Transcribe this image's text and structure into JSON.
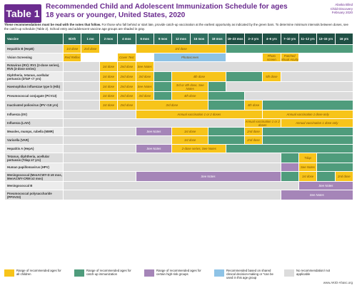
{
  "header": {
    "badge": "Table 1",
    "title": "Recommended Child and Adolescent Immunization Schedule for ages 18 years or younger, United States, 2020",
    "meta": [
      "Alaska Blind",
      "Child Discovery",
      "February 2020"
    ]
  },
  "intro": {
    "bold": "These recommendations must be read with the notes that follow.",
    "text": " For those who fall behind or start late, provide catch-up vaccination at the earliest opportunity as indicated by the green bars. To determine minimum intervals between doses, see the catch-up schedule (Table 2). School entry and adolescent vaccine age groups are shaded in gray."
  },
  "columns": [
    "Vaccine",
    "Birth",
    "1 mo",
    "2 mos",
    "4 mos",
    "6 mos",
    "9 mos",
    "12 mos",
    "15 mos",
    "18 mos",
    "19–23 mos",
    "2–3 yrs",
    "4–6 yrs",
    "7–10 yrs",
    "11–12 yrs",
    "13–15 yrs",
    "16 yrs",
    "17–18 yrs"
  ],
  "rows": [
    {
      "name": "Hepatitis B (HepB)",
      "cells": [
        {
          "span": 1,
          "c": "y",
          "t": "1st dose"
        },
        {
          "span": 1,
          "c": "y",
          "t": "2nd dose"
        },
        {
          "span": 1,
          "c": "w",
          "t": ""
        },
        {
          "span": 1,
          "c": "w",
          "t": ""
        },
        {
          "span": 5,
          "c": "y",
          "t": "3rd dose"
        },
        {
          "span": 8,
          "c": "g",
          "t": ""
        }
      ]
    },
    {
      "name": "Vision Screening",
      "cells": [
        {
          "span": 1,
          "c": "y",
          "t": "Red Reflex"
        },
        {
          "span": 2,
          "c": "w",
          "t": ""
        },
        {
          "span": 1,
          "c": "y",
          "t": "Cover Test"
        },
        {
          "span": 1,
          "c": "w",
          "t": ""
        },
        {
          "span": 4,
          "c": "b",
          "t": "Photoscreen"
        },
        {
          "span": 2,
          "c": "w",
          "t": ""
        },
        {
          "span": 1,
          "c": "y",
          "t": "Photo screen"
        },
        {
          "span": 1,
          "c": "y",
          "t": "Patched Visual Acuity"
        },
        {
          "span": 4,
          "c": "w",
          "t": ""
        }
      ]
    },
    {
      "name": "Rotavirus (RV): RV1 (2-dose series), RV5 (3-dose series)",
      "cells": [
        {
          "span": 2,
          "c": "x",
          "t": ""
        },
        {
          "span": 1,
          "c": "y",
          "t": "1st dose"
        },
        {
          "span": 1,
          "c": "y",
          "t": "2nd dose"
        },
        {
          "span": 1,
          "c": "y",
          "t": "See Notes"
        },
        {
          "span": 11,
          "c": "x",
          "t": ""
        }
      ]
    },
    {
      "name": "Diphtheria, tetanus, acellular pertussis (DTaP <7 yrs)",
      "cells": [
        {
          "span": 2,
          "c": "x",
          "t": ""
        },
        {
          "span": 1,
          "c": "y",
          "t": "1st dose"
        },
        {
          "span": 1,
          "c": "y",
          "t": "2nd dose"
        },
        {
          "span": 1,
          "c": "y",
          "t": "3rd dose"
        },
        {
          "span": 1,
          "c": "g",
          "t": ""
        },
        {
          "span": 3,
          "c": "y",
          "t": "4th dose"
        },
        {
          "span": 2,
          "c": "g",
          "t": ""
        },
        {
          "span": 1,
          "c": "y",
          "t": "5th dose"
        },
        {
          "span": 4,
          "c": "x",
          "t": ""
        }
      ]
    },
    {
      "name": "Haemophilus influenzae type b (Hib)",
      "cells": [
        {
          "span": 2,
          "c": "x",
          "t": ""
        },
        {
          "span": 1,
          "c": "y",
          "t": "1st dose"
        },
        {
          "span": 1,
          "c": "y",
          "t": "2nd dose"
        },
        {
          "span": 1,
          "c": "y",
          "t": "See Notes"
        },
        {
          "span": 1,
          "c": "g",
          "t": ""
        },
        {
          "span": 2,
          "c": "y",
          "t": "3rd or 4th dose, See Notes"
        },
        {
          "span": 1,
          "c": "g",
          "t": ""
        },
        {
          "span": 7,
          "c": "x",
          "t": ""
        }
      ]
    },
    {
      "name": "Pneumococcal conjugate (PCV13)",
      "cells": [
        {
          "span": 2,
          "c": "x",
          "t": ""
        },
        {
          "span": 1,
          "c": "y",
          "t": "1st dose"
        },
        {
          "span": 1,
          "c": "y",
          "t": "2nd dose"
        },
        {
          "span": 1,
          "c": "y",
          "t": "3rd dose"
        },
        {
          "span": 1,
          "c": "g",
          "t": ""
        },
        {
          "span": 2,
          "c": "y",
          "t": "4th dose"
        },
        {
          "span": 2,
          "c": "g",
          "t": ""
        },
        {
          "span": 6,
          "c": "x",
          "t": ""
        }
      ]
    },
    {
      "name": "Inactivated poliovirus (IPV <18 yrs)",
      "cells": [
        {
          "span": 2,
          "c": "x",
          "t": ""
        },
        {
          "span": 1,
          "c": "y",
          "t": "1st dose"
        },
        {
          "span": 1,
          "c": "y",
          "t": "2nd dose"
        },
        {
          "span": 4,
          "c": "y",
          "t": "3rd dose"
        },
        {
          "span": 2,
          "c": "g",
          "t": ""
        },
        {
          "span": 1,
          "c": "y",
          "t": "4th dose"
        },
        {
          "span": 5,
          "c": "g",
          "t": ""
        }
      ]
    },
    {
      "name": "Influenza (IIV)",
      "cells": [
        {
          "span": 4,
          "c": "x",
          "t": ""
        },
        {
          "span": 7,
          "c": "y",
          "t": "Annual vaccination 1 or 2 doses"
        },
        {
          "span": 5,
          "c": "y",
          "t": "Annual vaccination 1 dose only"
        }
      ]
    },
    {
      "name": "Influenza (LAIV)",
      "cells": [
        {
          "span": 10,
          "c": "x",
          "t": ""
        },
        {
          "span": 2,
          "c": "y",
          "t": "Annual vaccination 1 or 2 doses"
        },
        {
          "span": 4,
          "c": "y",
          "t": "Annual vaccination 1 dose only"
        }
      ]
    },
    {
      "name": "Measles, mumps, rubella (MMR)",
      "cells": [
        {
          "span": 4,
          "c": "x",
          "t": ""
        },
        {
          "span": 2,
          "c": "p",
          "t": "See Notes"
        },
        {
          "span": 2,
          "c": "y",
          "t": "1st dose"
        },
        {
          "span": 2,
          "c": "g",
          "t": ""
        },
        {
          "span": 1,
          "c": "y",
          "t": "2nd dose"
        },
        {
          "span": 5,
          "c": "g",
          "t": ""
        }
      ]
    },
    {
      "name": "Varicella (VAR)",
      "cells": [
        {
          "span": 6,
          "c": "x",
          "t": ""
        },
        {
          "span": 2,
          "c": "y",
          "t": "1st dose"
        },
        {
          "span": 2,
          "c": "g",
          "t": ""
        },
        {
          "span": 1,
          "c": "y",
          "t": "2nd dose"
        },
        {
          "span": 5,
          "c": "g",
          "t": ""
        }
      ]
    },
    {
      "name": "Hepatitis A (HepA)",
      "cells": [
        {
          "span": 4,
          "c": "x",
          "t": ""
        },
        {
          "span": 2,
          "c": "p",
          "t": "See Notes"
        },
        {
          "span": 3,
          "c": "y",
          "t": "2-dose series, See Notes"
        },
        {
          "span": 7,
          "c": "g",
          "t": ""
        }
      ]
    },
    {
      "name": "Tetanus, diphtheria, acellular pertussis (Tdap ≥7 yrs)",
      "cells": [
        {
          "span": 12,
          "c": "x",
          "t": ""
        },
        {
          "span": 1,
          "c": "g",
          "t": ""
        },
        {
          "span": 1,
          "c": "y",
          "t": "Tdap"
        },
        {
          "span": 2,
          "c": "g",
          "t": ""
        }
      ]
    },
    {
      "name": "Human papillomavirus (HPV)",
      "cells": [
        {
          "span": 12,
          "c": "x",
          "t": ""
        },
        {
          "span": 1,
          "c": "p",
          "t": ""
        },
        {
          "span": 1,
          "c": "y",
          "t": "See Notes"
        },
        {
          "span": 2,
          "c": "g",
          "t": ""
        }
      ]
    },
    {
      "name": "Meningococcal (MenACWY-D ≥9 mos, MenACWY-CRM ≥2 mos)",
      "cells": [
        {
          "span": 4,
          "c": "x",
          "t": ""
        },
        {
          "span": 8,
          "c": "p",
          "t": "See Notes"
        },
        {
          "span": 1,
          "c": "g",
          "t": ""
        },
        {
          "span": 1,
          "c": "y",
          "t": "1st dose"
        },
        {
          "span": 1,
          "c": "g",
          "t": ""
        },
        {
          "span": 1,
          "c": "y",
          "t": "2nd dose"
        }
      ]
    },
    {
      "name": "Meningococcal B",
      "cells": [
        {
          "span": 13,
          "c": "x",
          "t": ""
        },
        {
          "span": 3,
          "c": "p",
          "t": "See Notes"
        }
      ]
    },
    {
      "name": "Pneumococcal polysaccharide (PPSV23)",
      "cells": [
        {
          "span": 12,
          "c": "x",
          "t": ""
        },
        {
          "span": 4,
          "c": "p",
          "t": "See Notes"
        }
      ]
    }
  ],
  "or_label": "OR",
  "legend": [
    {
      "color": "#f7c41a",
      "text": "Range of recommended ages for all children"
    },
    {
      "color": "#4f9c7c",
      "text": "Range of recommended ages for catch-up immunization"
    },
    {
      "color": "#a585b8",
      "text": "Range of recommended ages for certain high-risk groups"
    },
    {
      "color": "#8ec3e6",
      "text": "Recommended based on shared clinical decision-making or *can be used in this age group"
    },
    {
      "color": "#dcdcdc",
      "text": "No recommendation/ not applicable"
    }
  ],
  "footer_url": "www.AKID-Ahasc.org"
}
